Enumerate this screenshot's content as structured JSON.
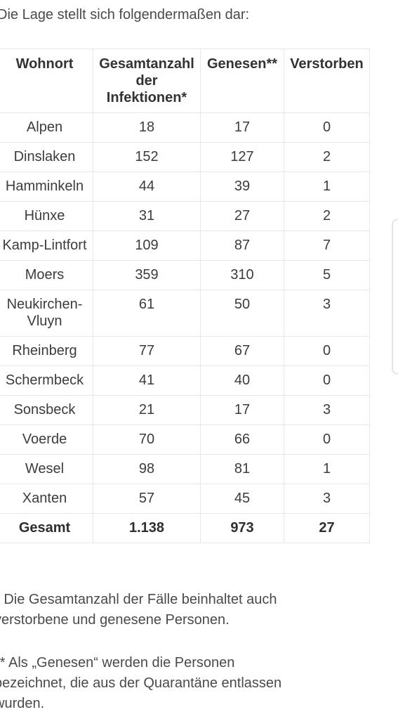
{
  "intro": "Die Lage stellt sich folgendermaßen dar:",
  "table": {
    "headers": {
      "wohnort": "Wohnort",
      "gesamt": "Gesamtanzahl der Infektionen*",
      "genesen": "Genesen**",
      "verstorben": "Verstorben"
    },
    "rows": [
      {
        "ort": "Alpen",
        "gesamt": "18",
        "genesen": "17",
        "verstorben": "0"
      },
      {
        "ort": "Dinslaken",
        "gesamt": "152",
        "genesen": "127",
        "verstorben": "2"
      },
      {
        "ort": "Hamminkeln",
        "gesamt": "44",
        "genesen": "39",
        "verstorben": "1"
      },
      {
        "ort": "Hünxe",
        "gesamt": "31",
        "genesen": "27",
        "verstorben": "2"
      },
      {
        "ort": "Kamp-Lintfort",
        "gesamt": "109",
        "genesen": "87",
        "verstorben": "7"
      },
      {
        "ort": "Moers",
        "gesamt": "359",
        "genesen": "310",
        "verstorben": "5"
      },
      {
        "ort": "Neukirchen-Vluyn",
        "gesamt": "61",
        "genesen": "50",
        "verstorben": "3"
      },
      {
        "ort": "Rheinberg",
        "gesamt": "77",
        "genesen": "67",
        "verstorben": "0"
      },
      {
        "ort": "Schermbeck",
        "gesamt": "41",
        "genesen": "40",
        "verstorben": "0"
      },
      {
        "ort": "Sonsbeck",
        "gesamt": "21",
        "genesen": "17",
        "verstorben": "3"
      },
      {
        "ort": "Voerde",
        "gesamt": "70",
        "genesen": "66",
        "verstorben": "0"
      },
      {
        "ort": "Wesel",
        "gesamt": "98",
        "genesen": "81",
        "verstorben": "1"
      },
      {
        "ort": "Xanten",
        "gesamt": "57",
        "genesen": "45",
        "verstorben": "3"
      }
    ],
    "total": {
      "ort": "Gesamt",
      "gesamt": "1.138",
      "genesen": "973",
      "verstorben": "27"
    }
  },
  "notes": {
    "note1": "* Die Gesamtanzahl der Fälle beinhaltet auch verstorbene und genesene Personen.",
    "note2": "** Als „Genesen“ werden die Personen bezeichnet, die aus der Quarantäne entlassen wurden."
  }
}
